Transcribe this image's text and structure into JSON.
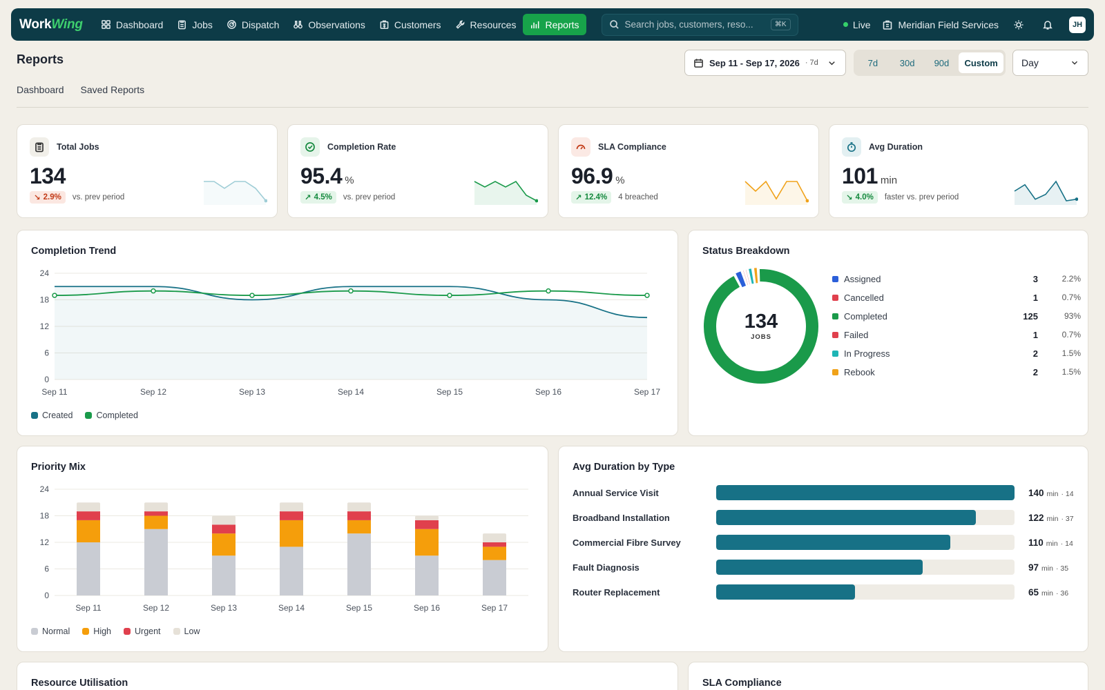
{
  "nav": {
    "logo_a": "Work",
    "logo_b": "Wing",
    "items": [
      {
        "label": "Dashboard",
        "icon": "grid-icon"
      },
      {
        "label": "Jobs",
        "icon": "clipboard-icon"
      },
      {
        "label": "Dispatch",
        "icon": "radar-icon"
      },
      {
        "label": "Observations",
        "icon": "binoculars-icon"
      },
      {
        "label": "Customers",
        "icon": "building-icon"
      },
      {
        "label": "Resources",
        "icon": "wrench-icon"
      },
      {
        "label": "Reports",
        "icon": "bar-chart-icon",
        "active": true
      }
    ],
    "search_placeholder": "Search jobs, customers, reso...",
    "search_shortcut": "⌘K",
    "live_label": "Live",
    "org_name": "Meridian Field Services",
    "avatar_initials": "JH"
  },
  "page": {
    "title": "Reports",
    "tabs": [
      "Dashboard",
      "Saved Reports"
    ],
    "date_range": "Sep 11 - Sep 17, 2026",
    "date_range_sub": "· 7d",
    "ranges": [
      "7d",
      "30d",
      "90d",
      "Custom"
    ],
    "active_range": "Custom",
    "granularity": "Day"
  },
  "kpis": [
    {
      "title": "Total Jobs",
      "value": "134",
      "unit": "",
      "delta": "2.9%",
      "direction": "down",
      "sentiment": "bad",
      "note": "vs. prev period",
      "color": "#9fcdd6",
      "spark": [
        20,
        20,
        14,
        20,
        20,
        14,
        3
      ]
    },
    {
      "title": "Completion Rate",
      "value": "95.4",
      "unit": "%",
      "delta": "4.5%",
      "direction": "up",
      "sentiment": "good",
      "note": "vs. prev period",
      "color": "#1a9a4a",
      "spark": [
        19,
        17,
        19,
        17,
        19,
        14,
        12
      ]
    },
    {
      "title": "SLA Compliance",
      "value": "96.9",
      "unit": "%",
      "delta": "12.4%",
      "direction": "up",
      "sentiment": "good",
      "note": "4 breached",
      "color": "#f0a21a",
      "spark": [
        19,
        14,
        19,
        10,
        19,
        19,
        9
      ]
    },
    {
      "title": "Avg Duration",
      "value": "101",
      "unit": "min",
      "delta": "4.0%",
      "direction": "down",
      "sentiment": "good",
      "note": "faster vs. prev period",
      "color": "#177186",
      "spark": [
        15,
        19,
        10,
        13,
        21,
        9,
        10
      ]
    }
  ],
  "completion_trend": {
    "title": "Completion Trend",
    "chart_data": {
      "type": "line",
      "x": [
        "Sep 11",
        "Sep 12",
        "Sep 13",
        "Sep 14",
        "Sep 15",
        "Sep 16",
        "Sep 17"
      ],
      "yticks": [
        0,
        6,
        12,
        18,
        24
      ],
      "ylim": [
        0,
        24
      ],
      "series": [
        {
          "name": "Created",
          "color": "#177186",
          "values": [
            21,
            21,
            18,
            21,
            21,
            18,
            14
          ]
        },
        {
          "name": "Completed",
          "color": "#1a9a4a",
          "values": [
            19,
            20,
            19,
            20,
            19,
            20,
            19
          ]
        }
      ]
    }
  },
  "status_breakdown": {
    "title": "Status Breakdown",
    "total": "134",
    "total_label": "JOBS",
    "items": [
      {
        "label": "Assigned",
        "count": "3",
        "pct": "2.2%",
        "color": "#2b5fd9",
        "value": 3
      },
      {
        "label": "Cancelled",
        "count": "1",
        "pct": "0.7%",
        "color": "#e0404d",
        "value": 1
      },
      {
        "label": "Completed",
        "count": "125",
        "pct": "93%",
        "color": "#1a9a4a",
        "value": 125
      },
      {
        "label": "Failed",
        "count": "1",
        "pct": "0.7%",
        "color": "#e0404d",
        "value": 1
      },
      {
        "label": "In Progress",
        "count": "2",
        "pct": "1.5%",
        "color": "#1eb5b5",
        "value": 2
      },
      {
        "label": "Rebook",
        "count": "2",
        "pct": "1.5%",
        "color": "#f0a21a",
        "value": 2
      }
    ]
  },
  "priority_mix": {
    "title": "Priority Mix",
    "chart_data": {
      "type": "bar",
      "stacked": true,
      "categories": [
        "Sep 11",
        "Sep 12",
        "Sep 13",
        "Sep 14",
        "Sep 15",
        "Sep 16",
        "Sep 17"
      ],
      "yticks": [
        0,
        6,
        12,
        18,
        24
      ],
      "ylim": [
        0,
        24
      ],
      "series": [
        {
          "name": "Normal",
          "color": "#c9ccd3",
          "values": [
            12,
            15,
            9,
            11,
            14,
            9,
            8
          ]
        },
        {
          "name": "High",
          "color": "#f59e0b",
          "values": [
            5,
            3,
            5,
            6,
            3,
            6,
            3
          ]
        },
        {
          "name": "Urgent",
          "color": "#e0404d",
          "values": [
            2,
            1,
            2,
            2,
            2,
            2,
            1
          ]
        },
        {
          "name": "Low",
          "color": "#e6e1d8",
          "values": [
            2,
            2,
            2,
            2,
            2,
            1,
            2
          ]
        }
      ]
    }
  },
  "avg_duration": {
    "title": "Avg Duration by Type",
    "unit": "min",
    "max": 140,
    "items": [
      {
        "label": "Annual Service Visit",
        "value": 140,
        "value_text": "140",
        "count": "· 14"
      },
      {
        "label": "Broadband Installation",
        "value": 122,
        "value_text": "122",
        "count": "· 37"
      },
      {
        "label": "Commercial Fibre Survey",
        "value": 110,
        "value_text": "110",
        "count": "· 14"
      },
      {
        "label": "Fault Diagnosis",
        "value": 97,
        "value_text": "97",
        "count": "· 35"
      },
      {
        "label": "Router Replacement",
        "value": 65,
        "value_text": "65",
        "count": "· 36"
      }
    ]
  },
  "bottom": {
    "resource_title": "Resource Utilisation",
    "sla_title": "SLA Compliance"
  }
}
